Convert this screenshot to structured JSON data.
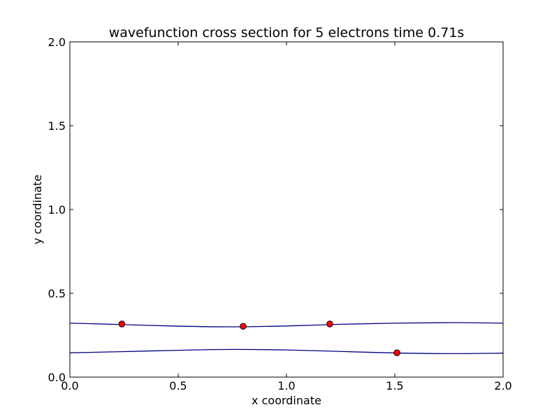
{
  "chart_data": {
    "type": "line",
    "title": "wavefunction cross section for 5 electrons time 0.71s",
    "xlabel": "x coordinate",
    "ylabel": "y coordinate",
    "xlim": [
      0.0,
      2.0
    ],
    "ylim": [
      0.0,
      2.0
    ],
    "xticks": [
      "0.0",
      "0.5",
      "1.0",
      "1.5",
      "2.0"
    ],
    "yticks": [
      "0.0",
      "0.5",
      "1.0",
      "1.5",
      "2.0"
    ],
    "grid": false,
    "series": [
      {
        "style": "line",
        "color": "#000080",
        "x": [
          0.0,
          0.25,
          0.5,
          0.75,
          1.0,
          1.25,
          1.5,
          1.75,
          2.0
        ],
        "y": [
          0.322,
          0.313,
          0.304,
          0.3,
          0.305,
          0.315,
          0.322,
          0.325,
          0.322
        ]
      },
      {
        "style": "line",
        "color": "#000080",
        "x": [
          0.0,
          0.25,
          0.5,
          0.75,
          1.0,
          1.25,
          1.5,
          1.75,
          2.0
        ],
        "y": [
          0.145,
          0.152,
          0.16,
          0.165,
          0.162,
          0.153,
          0.144,
          0.14,
          0.143
        ]
      },
      {
        "style": "scatter",
        "color": "#ff0000",
        "x": [
          0.24,
          0.8,
          1.2,
          1.51
        ],
        "y": [
          0.317,
          0.303,
          0.317,
          0.145
        ]
      }
    ]
  }
}
